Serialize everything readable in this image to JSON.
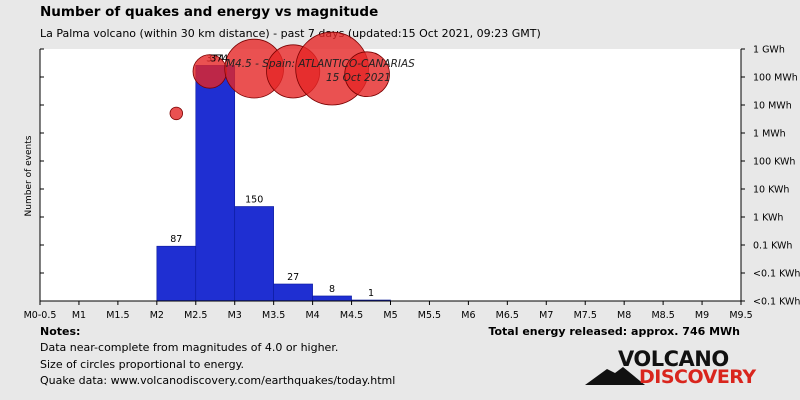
{
  "header": {
    "title": "Number of quakes and energy vs magnitude",
    "subtitle": "La Palma volcano (within 30 km distance) - past 7 days (updated:15 Oct 2021, 09:23 GMT)"
  },
  "notes": {
    "title": "Notes:",
    "lines": [
      "Data near-complete from magnitudes of 4.0 or higher.",
      "Size of circles proportional to energy.",
      "Quake data: www.volcanodiscovery.com/earthquakes/today.html"
    ],
    "total_energy": "Total energy released: approx. 746 MWh"
  },
  "logo": {
    "top": "VOLCANO",
    "bottom": "DISCOVERY"
  },
  "chart_data": {
    "type": "bar",
    "ylabel": "Number of events",
    "x_ticks": [
      "M0-0.5",
      "M1",
      "M1.5",
      "M2",
      "M2.5",
      "M3",
      "M3.5",
      "M4",
      "M4.5",
      "M5",
      "M5.5",
      "M6",
      "M6.5",
      "M7",
      "M7.5",
      "M8",
      "M8.5",
      "M9",
      "M9.5"
    ],
    "xlim": [
      0.5,
      9.5
    ],
    "bars": [
      {
        "from": 2.0,
        "to": 2.5,
        "count": 87,
        "label": "87"
      },
      {
        "from": 2.5,
        "to": 3.0,
        "count": 374,
        "label": "374"
      },
      {
        "from": 3.0,
        "to": 3.5,
        "count": 150,
        "label": "150"
      },
      {
        "from": 3.5,
        "to": 4.0,
        "count": 27,
        "label": "27"
      },
      {
        "from": 4.0,
        "to": 4.5,
        "count": 8,
        "label": "8"
      },
      {
        "from": 4.5,
        "to": 5.0,
        "count": 1,
        "label": "1"
      }
    ],
    "count_max": 400,
    "energy_axis_ticks": [
      "1 GWh",
      "100 MWh",
      "10 MWh",
      "1 MWh",
      "100 KWh",
      "10 KWh",
      "1 KWh",
      "0.1 KWh",
      "<0.1 KWh",
      "<0.1 KWh"
    ],
    "energy_circles": [
      {
        "magnitude": 2.25,
        "energy_index": 6.7,
        "size": 0.09
      },
      {
        "magnitude": 2.68,
        "energy_index": 8.2,
        "size": 0.24
      },
      {
        "magnitude": 3.25,
        "energy_index": 8.3,
        "size": 0.42
      },
      {
        "magnitude": 3.75,
        "energy_index": 8.2,
        "size": 0.38
      },
      {
        "magnitude": 4.25,
        "energy_index": 8.3,
        "size": 0.52
      },
      {
        "magnitude": 4.7,
        "energy_index": 8.1,
        "size": 0.32
      }
    ],
    "annotation": {
      "lines": [
        "M4.5 - Spain: ATLANTICO-CANARIAS",
        "15 Oct 2021"
      ],
      "magnitude": 4.1,
      "energy_index": 8.35
    },
    "grid": false,
    "colors": {
      "bar": "#1f2fd2",
      "bar_edge": "#0b1a9a",
      "circle": "#e52626",
      "circle_edge": "#7a0000"
    }
  }
}
